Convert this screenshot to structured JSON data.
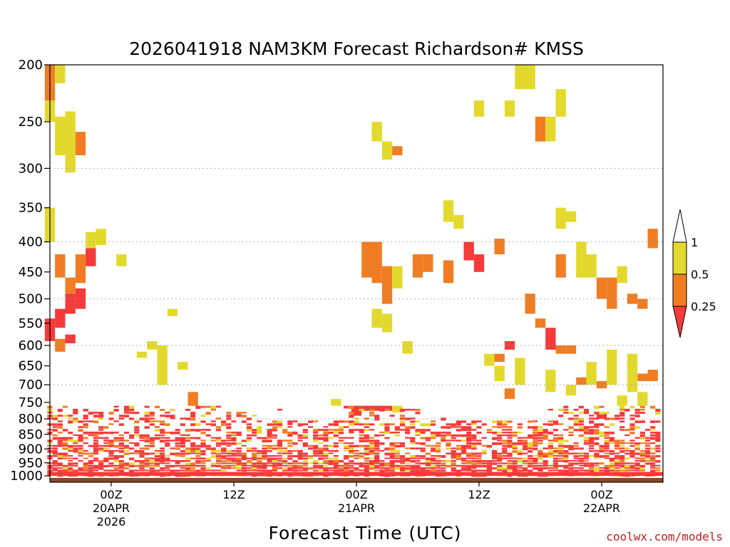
{
  "chart_data": {
    "type": "heatmap",
    "title": "2026041918 NAM3KM Forecast Richardson# KMSS",
    "xlabel": "Forecast Time (UTC)",
    "ylabel": "",
    "credit": "coolwx.com/models",
    "y_scale": "log",
    "ylim": [
      1025,
      200
    ],
    "xlim": [
      -6,
      54
    ],
    "y_ticks": [
      200,
      250,
      300,
      350,
      400,
      450,
      500,
      550,
      600,
      650,
      700,
      750,
      800,
      850,
      900,
      950,
      1000
    ],
    "gridlines_hpa": [
      300,
      400,
      500,
      600,
      700,
      800,
      900
    ],
    "x_ticks": [
      {
        "hour": 0,
        "lines": [
          "00Z",
          "20APR",
          "2026"
        ]
      },
      {
        "hour": 12,
        "lines": [
          "12Z"
        ]
      },
      {
        "hour": 24,
        "lines": [
          "00Z",
          "21APR"
        ]
      },
      {
        "hour": 36,
        "lines": [
          "12Z"
        ]
      },
      {
        "hour": 48,
        "lines": [
          "00Z",
          "22APR"
        ]
      }
    ],
    "colorbar": {
      "labels": [
        "1",
        "0.5",
        "0.25"
      ],
      "bins": [
        {
          "range": "0.5-1",
          "color": "#e3d92e"
        },
        {
          "range": "0.25-0.5",
          "color": "#f07d23"
        },
        {
          "range": "0-0.25",
          "color": "#f53a3a"
        }
      ],
      "colors": {
        "white": "#ffffff",
        "yellow": "#e3d92e",
        "orange": "#f07d23",
        "red": "#f53a3a",
        "ground": "#8b4a27"
      }
    },
    "surface_pressure_hpa": 1008,
    "cells": [
      {
        "h": -6,
        "p0": 200,
        "p1": 230,
        "c": "o"
      },
      {
        "h": -6,
        "p0": 230,
        "p1": 250,
        "c": "y"
      },
      {
        "h": -6,
        "p0": 350,
        "p1": 400,
        "c": "y"
      },
      {
        "h": -5,
        "p0": 200,
        "p1": 215,
        "c": "y"
      },
      {
        "h": -5,
        "p0": 245,
        "p1": 285,
        "c": "y"
      },
      {
        "h": -4,
        "p0": 240,
        "p1": 305,
        "c": "y"
      },
      {
        "h": -3,
        "p0": 260,
        "p1": 285,
        "c": "o"
      },
      {
        "h": -5,
        "p0": 420,
        "p1": 460,
        "c": "o"
      },
      {
        "h": -4,
        "p0": 460,
        "p1": 490,
        "c": "o"
      },
      {
        "h": -4,
        "p0": 490,
        "p1": 530,
        "c": "r"
      },
      {
        "h": -3,
        "p0": 480,
        "p1": 520,
        "c": "r"
      },
      {
        "h": -3,
        "p0": 420,
        "p1": 470,
        "c": "o"
      },
      {
        "h": -2,
        "p0": 410,
        "p1": 440,
        "c": "r"
      },
      {
        "h": -2,
        "p0": 385,
        "p1": 410,
        "c": "y"
      },
      {
        "h": -1,
        "p0": 380,
        "p1": 405,
        "c": "y"
      },
      {
        "h": 1,
        "p0": 420,
        "p1": 440,
        "c": "y"
      },
      {
        "h": -6,
        "p0": 540,
        "p1": 590,
        "c": "r"
      },
      {
        "h": -5,
        "p0": 520,
        "p1": 560,
        "c": "r"
      },
      {
        "h": -4,
        "p0": 575,
        "p1": 595,
        "c": "r"
      },
      {
        "h": -5,
        "p0": 585,
        "p1": 615,
        "c": "o"
      },
      {
        "h": 4,
        "p0": 590,
        "p1": 610,
        "c": "y"
      },
      {
        "h": 5,
        "p0": 600,
        "p1": 700,
        "c": "y"
      },
      {
        "h": 3,
        "p0": 615,
        "p1": 630,
        "c": "y"
      },
      {
        "h": 6,
        "p0": 520,
        "p1": 535,
        "c": "y"
      },
      {
        "h": 7,
        "p0": 640,
        "p1": 660,
        "c": "y"
      },
      {
        "h": 8,
        "p0": 720,
        "p1": 760,
        "c": "o"
      },
      {
        "h": 22,
        "p0": 740,
        "p1": 760,
        "c": "y"
      },
      {
        "h": 25,
        "p0": 760,
        "p1": 775,
        "c": "r"
      },
      {
        "h": 26,
        "p0": 760,
        "p1": 775,
        "c": "r"
      },
      {
        "h": 27,
        "p0": 760,
        "p1": 775,
        "c": "r"
      },
      {
        "h": 28,
        "p0": 760,
        "p1": 780,
        "c": "y"
      },
      {
        "h": 24,
        "p0": 760,
        "p1": 790,
        "c": "r"
      },
      {
        "h": 25,
        "p0": 400,
        "p1": 460,
        "c": "o"
      },
      {
        "h": 26,
        "p0": 400,
        "p1": 470,
        "c": "o"
      },
      {
        "h": 27,
        "p0": 440,
        "p1": 510,
        "c": "o"
      },
      {
        "h": 26,
        "p0": 250,
        "p1": 270,
        "c": "y"
      },
      {
        "h": 27,
        "p0": 270,
        "p1": 290,
        "c": "y"
      },
      {
        "h": 28,
        "p0": 275,
        "p1": 285,
        "c": "o"
      },
      {
        "h": 28,
        "p0": 440,
        "p1": 480,
        "c": "y"
      },
      {
        "h": 26,
        "p0": 520,
        "p1": 560,
        "c": "y"
      },
      {
        "h": 27,
        "p0": 530,
        "p1": 570,
        "c": "y"
      },
      {
        "h": 29,
        "p0": 590,
        "p1": 620,
        "c": "y"
      },
      {
        "h": 30,
        "p0": 420,
        "p1": 460,
        "c": "o"
      },
      {
        "h": 31,
        "p0": 420,
        "p1": 450,
        "c": "o"
      },
      {
        "h": 33,
        "p0": 430,
        "p1": 470,
        "c": "o"
      },
      {
        "h": 35,
        "p0": 400,
        "p1": 430,
        "c": "r"
      },
      {
        "h": 36,
        "p0": 420,
        "p1": 450,
        "c": "r"
      },
      {
        "h": 38,
        "p0": 395,
        "p1": 420,
        "c": "o"
      },
      {
        "h": 33,
        "p0": 340,
        "p1": 370,
        "c": "y"
      },
      {
        "h": 34,
        "p0": 360,
        "p1": 380,
        "c": "y"
      },
      {
        "h": 36,
        "p0": 230,
        "p1": 245,
        "c": "y"
      },
      {
        "h": 39,
        "p0": 230,
        "p1": 245,
        "c": "y"
      },
      {
        "h": 40,
        "p0": 200,
        "p1": 220,
        "c": "y"
      },
      {
        "h": 41,
        "p0": 200,
        "p1": 220,
        "c": "y"
      },
      {
        "h": 42,
        "p0": 245,
        "p1": 270,
        "c": "o"
      },
      {
        "h": 43,
        "p0": 245,
        "p1": 270,
        "c": "y"
      },
      {
        "h": 44,
        "p0": 220,
        "p1": 245,
        "c": "y"
      },
      {
        "h": 44,
        "p0": 350,
        "p1": 380,
        "c": "y"
      },
      {
        "h": 45,
        "p0": 355,
        "p1": 370,
        "c": "y"
      },
      {
        "h": 46,
        "p0": 400,
        "p1": 460,
        "c": "y"
      },
      {
        "h": 44,
        "p0": 420,
        "p1": 460,
        "c": "o"
      },
      {
        "h": 47,
        "p0": 420,
        "p1": 460,
        "c": "y"
      },
      {
        "h": 48,
        "p0": 460,
        "p1": 500,
        "c": "o"
      },
      {
        "h": 49,
        "p0": 460,
        "p1": 520,
        "c": "o"
      },
      {
        "h": 50,
        "p0": 440,
        "p1": 470,
        "c": "y"
      },
      {
        "h": 51,
        "p0": 490,
        "p1": 510,
        "c": "o"
      },
      {
        "h": 52,
        "p0": 500,
        "p1": 520,
        "c": "o"
      },
      {
        "h": 53,
        "p0": 380,
        "p1": 410,
        "c": "o"
      },
      {
        "h": 41,
        "p0": 490,
        "p1": 530,
        "c": "o"
      },
      {
        "h": 42,
        "p0": 540,
        "p1": 560,
        "c": "o"
      },
      {
        "h": 43,
        "p0": 560,
        "p1": 610,
        "c": "r"
      },
      {
        "h": 44,
        "p0": 600,
        "p1": 620,
        "c": "o"
      },
      {
        "h": 39,
        "p0": 590,
        "p1": 610,
        "c": "r"
      },
      {
        "h": 38,
        "p0": 620,
        "p1": 640,
        "c": "o"
      },
      {
        "h": 45,
        "p0": 600,
        "p1": 620,
        "c": "o"
      },
      {
        "h": 53,
        "p0": 660,
        "p1": 690,
        "c": "o"
      },
      {
        "h": 52,
        "p0": 670,
        "p1": 690,
        "c": "o"
      },
      {
        "h": 48,
        "p0": 690,
        "p1": 710,
        "c": "o"
      },
      {
        "h": 46,
        "p0": 680,
        "p1": 700,
        "c": "o"
      },
      {
        "h": 39,
        "p0": 710,
        "p1": 740,
        "c": "o"
      },
      {
        "h": 40,
        "p0": 630,
        "p1": 700,
        "c": "y"
      },
      {
        "h": 38,
        "p0": 650,
        "p1": 690,
        "c": "y"
      },
      {
        "h": 37,
        "p0": 620,
        "p1": 650,
        "c": "y"
      },
      {
        "h": 43,
        "p0": 660,
        "p1": 720,
        "c": "y"
      },
      {
        "h": 45,
        "p0": 700,
        "p1": 730,
        "c": "y"
      },
      {
        "h": 47,
        "p0": 640,
        "p1": 700,
        "c": "y"
      },
      {
        "h": 49,
        "p0": 610,
        "p1": 700,
        "c": "y"
      },
      {
        "h": 51,
        "p0": 620,
        "p1": 720,
        "c": "y"
      },
      {
        "h": 52,
        "p0": 720,
        "p1": 760,
        "c": "y"
      },
      {
        "h": 50,
        "p0": 730,
        "p1": 760,
        "c": "y"
      },
      {
        "h": 48,
        "p0": 780,
        "p1": 800,
        "c": "r"
      }
    ]
  }
}
